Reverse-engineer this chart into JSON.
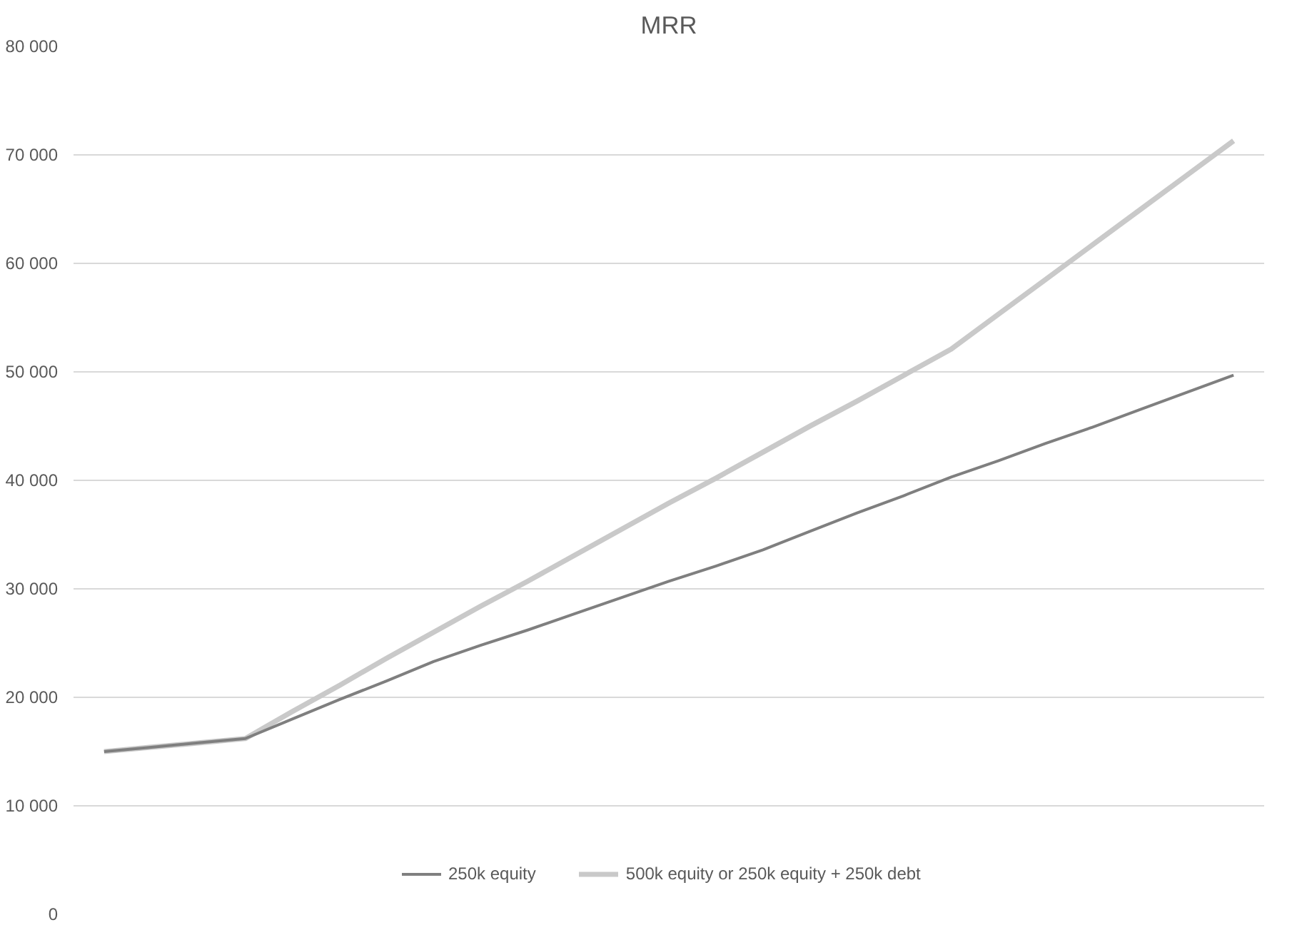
{
  "chart_data": {
    "type": "line",
    "title": "MRR",
    "categories": [
      null,
      null,
      null,
      null,
      null,
      null,
      null,
      null,
      null,
      null,
      null,
      null,
      null,
      null,
      null,
      null,
      null,
      null,
      null,
      null,
      null,
      null,
      null,
      null,
      null
    ],
    "series": [
      {
        "name": "250k equity",
        "color": "#7f7f7f",
        "values": [
          15000,
          15400,
          15800,
          16200,
          18000,
          19800,
          21500,
          23300,
          24800,
          26200,
          27700,
          29200,
          30700,
          32100,
          33600,
          35300,
          37000,
          38600,
          40300,
          41800,
          43400,
          44900,
          46500,
          48100,
          49700
        ]
      },
      {
        "name": "500k equity or 250k equity + 250k debt",
        "color": "#c9c9c9",
        "values": [
          15000,
          15400,
          15800,
          16200,
          18700,
          21100,
          23600,
          26000,
          28400,
          30700,
          33100,
          35500,
          37900,
          40200,
          42600,
          45000,
          47300,
          49700,
          52100,
          55300,
          58500,
          61700,
          64900,
          68100,
          71300
        ]
      }
    ],
    "ylim": [
      0,
      80000
    ],
    "yticks": [
      0,
      {
        "value": 10000,
        "label": "10 000"
      },
      {
        "value": 20000,
        "label": "20 000"
      },
      {
        "value": 30000,
        "label": "30 000"
      },
      {
        "value": 40000,
        "label": "40 000"
      },
      {
        "value": 50000,
        "label": "50 000"
      },
      {
        "value": 60000,
        "label": "60 000"
      },
      {
        "value": 70000,
        "label": "70 000"
      },
      {
        "value": 80000,
        "label": "80 000"
      }
    ],
    "grid": "y",
    "legend": "bottom",
    "marker": "none",
    "line_style": "solid"
  }
}
